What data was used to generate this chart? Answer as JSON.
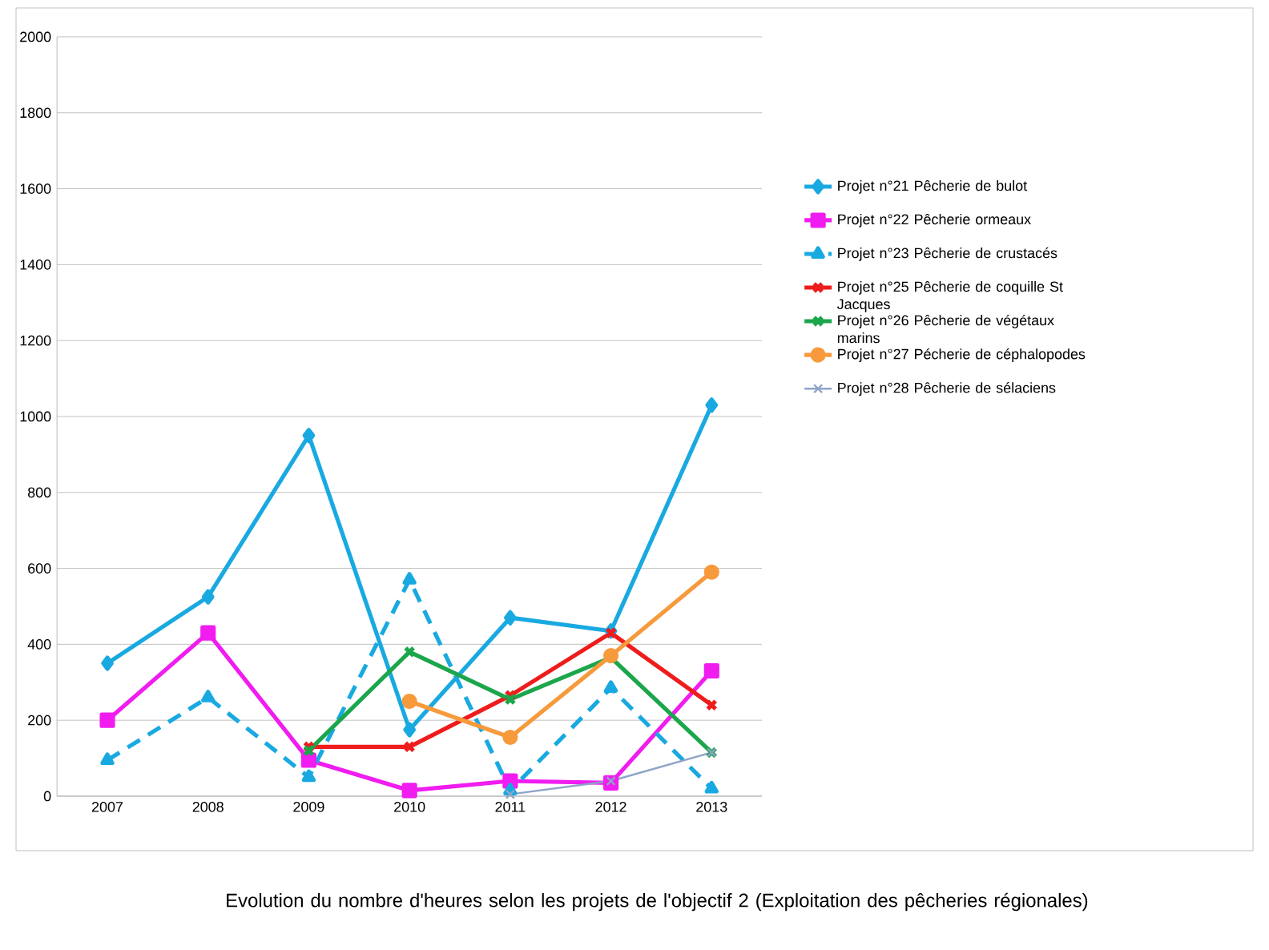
{
  "chart_data": {
    "type": "line",
    "title": "Evolution du nombre d'heures selon les projets de l'objectif 2 (Exploitation des pêcheries régionales)",
    "categories": [
      "2007",
      "2008",
      "2009",
      "2010",
      "2011",
      "2012",
      "2013"
    ],
    "ylim": [
      0,
      2000
    ],
    "yticks": [
      0,
      200,
      400,
      600,
      800,
      1000,
      1200,
      1400,
      1600,
      1800,
      2000
    ],
    "grid": "y",
    "legend": "right",
    "series": [
      {
        "name": "Projet n°21  Pêcherie de bulot",
        "color": "#19a9e1",
        "marker": "diamond",
        "values": [
          350,
          525,
          950,
          175,
          470,
          435,
          1030
        ]
      },
      {
        "name": "Projet n°22  Pêcherie ormeaux",
        "color": "#f01cf0",
        "marker": "square",
        "values": [
          200,
          430,
          95,
          15,
          40,
          35,
          330
        ]
      },
      {
        "name": "Projet n°23  Pêcherie de crustacés",
        "color": "#19a9e1",
        "marker": "triangle",
        "line_style": "dashed",
        "values": [
          95,
          260,
          50,
          570,
          15,
          285,
          20
        ]
      },
      {
        "name": "Projet n°25  Pêcherie de coquille St Jacques",
        "color": "#ee1c1c",
        "marker": "cross",
        "values": [
          null,
          null,
          130,
          130,
          265,
          430,
          240
        ]
      },
      {
        "name": "Projet n°26  Pêcherie de végétaux marins",
        "color": "#1ca64c",
        "marker": "cross",
        "values": [
          null,
          null,
          120,
          380,
          255,
          365,
          115
        ]
      },
      {
        "name": "Projet n°27  Pécherie de céphalopodes",
        "color": "#f79a3c",
        "marker": "circle",
        "values": [
          null,
          null,
          null,
          250,
          155,
          370,
          590
        ]
      },
      {
        "name": "Projet n°28  Pêcherie de sélaciens",
        "color": "#8ea4c8",
        "marker": "cross",
        "values": [
          null,
          null,
          null,
          null,
          5,
          40,
          115
        ]
      }
    ]
  }
}
